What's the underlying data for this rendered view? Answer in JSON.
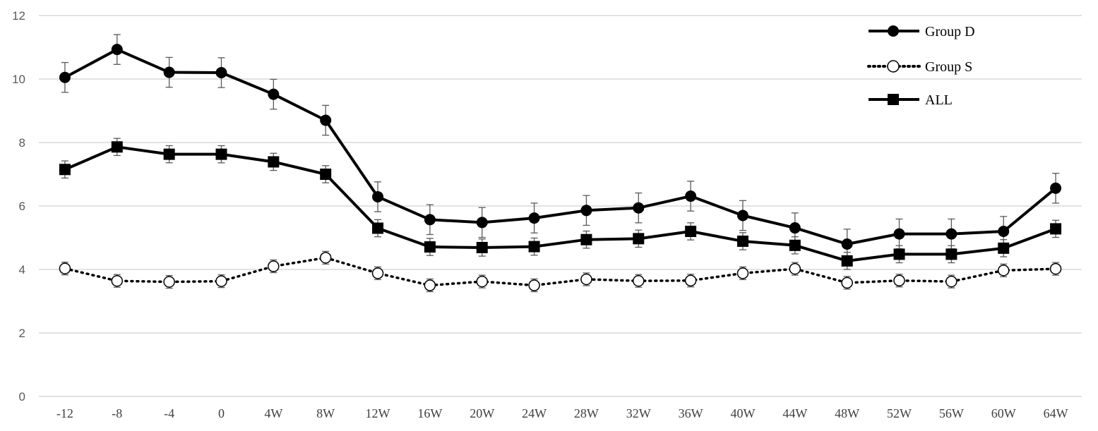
{
  "chart_data": {
    "type": "line",
    "title": "",
    "xlabel": "",
    "ylabel": "",
    "ylim": [
      0,
      12
    ],
    "yticks": [
      0,
      2,
      4,
      6,
      8,
      10,
      12
    ],
    "grid": true,
    "legend_position": "top-right",
    "categories": [
      "-12",
      "-8",
      "-4",
      "0",
      "4W",
      "8W",
      "12W",
      "16W",
      "20W",
      "24W",
      "28W",
      "32W",
      "36W",
      "40W",
      "44W",
      "48W",
      "52W",
      "56W",
      "60W",
      "64W"
    ],
    "series": [
      {
        "name": "Group D",
        "marker": "circle-filled",
        "line": "solid",
        "color": "#000000",
        "values": [
          10.05,
          10.93,
          10.21,
          10.2,
          9.52,
          8.7,
          6.29,
          5.57,
          5.48,
          5.62,
          5.86,
          5.94,
          6.31,
          5.7,
          5.31,
          4.8,
          5.12,
          5.12,
          5.2,
          6.56
        ],
        "error": [
          0.47,
          0.47,
          0.47,
          0.47,
          0.47,
          0.47,
          0.47,
          0.47,
          0.47,
          0.47,
          0.47,
          0.47,
          0.47,
          0.47,
          0.47,
          0.47,
          0.47,
          0.47,
          0.47,
          0.47
        ]
      },
      {
        "name": "Group S",
        "marker": "circle-open",
        "line": "dotted",
        "color": "#000000",
        "values": [
          4.03,
          3.64,
          3.61,
          3.63,
          4.1,
          4.37,
          3.88,
          3.5,
          3.62,
          3.5,
          3.69,
          3.64,
          3.65,
          3.88,
          4.02,
          3.58,
          3.65,
          3.62,
          3.97,
          4.02
        ],
        "error": [
          0.2,
          0.2,
          0.2,
          0.2,
          0.2,
          0.2,
          0.2,
          0.2,
          0.2,
          0.2,
          0.2,
          0.2,
          0.2,
          0.2,
          0.2,
          0.2,
          0.2,
          0.2,
          0.2,
          0.2
        ]
      },
      {
        "name": "ALL",
        "marker": "square-filled",
        "line": "solid",
        "color": "#000000",
        "values": [
          7.15,
          7.86,
          7.63,
          7.63,
          7.39,
          7.0,
          5.3,
          4.71,
          4.69,
          4.72,
          4.94,
          4.97,
          5.2,
          4.89,
          4.76,
          4.27,
          4.48,
          4.48,
          4.67,
          5.28
        ],
        "error": [
          0.27,
          0.27,
          0.27,
          0.27,
          0.27,
          0.27,
          0.27,
          0.27,
          0.27,
          0.27,
          0.27,
          0.27,
          0.27,
          0.27,
          0.27,
          0.27,
          0.27,
          0.27,
          0.27,
          0.27
        ]
      }
    ]
  },
  "colors": {
    "grid": "#d9d9d9",
    "series": "#000000",
    "errorbar": "#595959"
  }
}
